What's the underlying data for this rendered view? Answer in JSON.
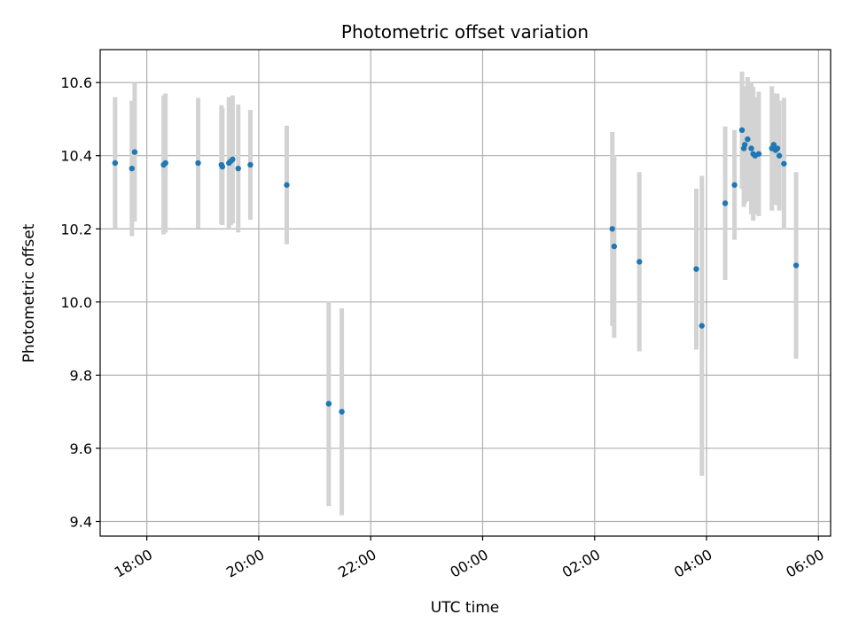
{
  "chart_data": {
    "type": "scatter",
    "title": "Photometric offset variation",
    "xlabel": "UTC time",
    "ylabel": "Photometric offset",
    "x_axis": "time",
    "xlim": [
      "17:10",
      "30:13"
    ],
    "ylim": [
      9.36,
      10.69
    ],
    "grid": true,
    "marker_color": "#1f77b4",
    "errorbar_color": "#d3d3d3",
    "x_ticks": [
      {
        "t": "18:00",
        "label": "18:00"
      },
      {
        "t": "20:00",
        "label": "20:00"
      },
      {
        "t": "22:00",
        "label": "22:00"
      },
      {
        "t": "24:00",
        "label": "00:00"
      },
      {
        "t": "26:00",
        "label": "02:00"
      },
      {
        "t": "28:00",
        "label": "04:00"
      },
      {
        "t": "30:00",
        "label": "06:00"
      }
    ],
    "y_ticks": [
      {
        "v": 9.4,
        "label": "9.4"
      },
      {
        "v": 9.6,
        "label": "9.6"
      },
      {
        "v": 9.8,
        "label": "9.8"
      },
      {
        "v": 10.0,
        "label": "10.0"
      },
      {
        "v": 10.2,
        "label": "10.2"
      },
      {
        "v": 10.4,
        "label": "10.4"
      },
      {
        "v": 10.6,
        "label": "10.6"
      }
    ],
    "points": [
      {
        "t": "17:26",
        "y": 10.38,
        "err": 0.18
      },
      {
        "t": "17:44",
        "y": 10.365,
        "err": 0.185
      },
      {
        "t": "17:47",
        "y": 10.41,
        "err": 0.19
      },
      {
        "t": "18:18",
        "y": 10.375,
        "err": 0.19
      },
      {
        "t": "18:20",
        "y": 10.38,
        "err": 0.19
      },
      {
        "t": "18:55",
        "y": 10.38,
        "err": 0.178
      },
      {
        "t": "19:20",
        "y": 10.375,
        "err": 0.163
      },
      {
        "t": "19:21",
        "y": 10.37,
        "err": 0.16
      },
      {
        "t": "19:28",
        "y": 10.38,
        "err": 0.18
      },
      {
        "t": "19:30",
        "y": 10.385,
        "err": 0.175
      },
      {
        "t": "19:32",
        "y": 10.39,
        "err": 0.175
      },
      {
        "t": "19:38",
        "y": 10.365,
        "err": 0.175
      },
      {
        "t": "19:51",
        "y": 10.375,
        "err": 0.15
      },
      {
        "t": "20:30",
        "y": 10.32,
        "err": 0.162
      },
      {
        "t": "21:15",
        "y": 9.722,
        "err": 0.28
      },
      {
        "t": "21:29",
        "y": 9.7,
        "err": 0.283
      },
      {
        "t": "26:19",
        "y": 10.2,
        "err": 0.265
      },
      {
        "t": "26:21",
        "y": 10.152,
        "err": 0.25
      },
      {
        "t": "26:48",
        "y": 10.11,
        "err": 0.245
      },
      {
        "t": "27:49",
        "y": 10.09,
        "err": 0.22
      },
      {
        "t": "27:55",
        "y": 9.935,
        "err": 0.41
      },
      {
        "t": "28:20",
        "y": 10.27,
        "err": 0.21
      },
      {
        "t": "28:30",
        "y": 10.32,
        "err": 0.15
      },
      {
        "t": "28:38",
        "y": 10.47,
        "err": 0.16
      },
      {
        "t": "28:40",
        "y": 10.42,
        "err": 0.16
      },
      {
        "t": "28:41",
        "y": 10.43,
        "err": 0.16
      },
      {
        "t": "28:44",
        "y": 10.445,
        "err": 0.17
      },
      {
        "t": "28:48",
        "y": 10.42,
        "err": 0.18
      },
      {
        "t": "28:50",
        "y": 10.405,
        "err": 0.183
      },
      {
        "t": "28:52",
        "y": 10.4,
        "err": 0.16
      },
      {
        "t": "28:56",
        "y": 10.405,
        "err": 0.17
      },
      {
        "t": "29:10",
        "y": 10.42,
        "err": 0.17
      },
      {
        "t": "29:12",
        "y": 10.43,
        "err": 0.14
      },
      {
        "t": "29:14",
        "y": 10.415,
        "err": 0.15
      },
      {
        "t": "29:16",
        "y": 10.42,
        "err": 0.15
      },
      {
        "t": "29:18",
        "y": 10.4,
        "err": 0.15
      },
      {
        "t": "29:23",
        "y": 10.378,
        "err": 0.18
      },
      {
        "t": "29:36",
        "y": 10.1,
        "err": 0.255
      }
    ]
  }
}
